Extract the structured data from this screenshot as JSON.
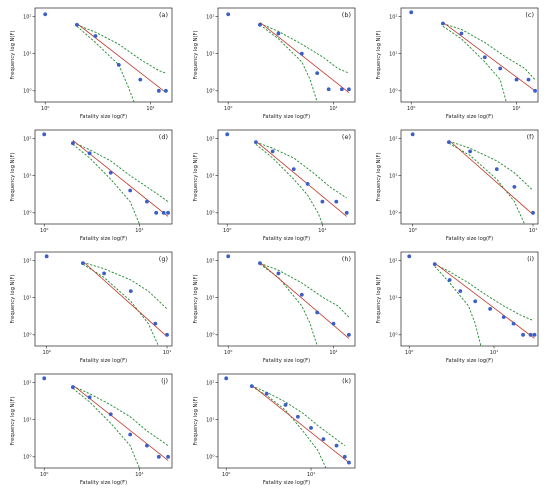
{
  "figure": {
    "xlabel": "Fatality size log(F)",
    "ylabel": "Frequency log N(F)"
  },
  "chart_data": [
    {
      "panel": "(a)",
      "type": "scatter",
      "xscale": "log",
      "yscale": "log",
      "xlabel": "Fatality size log(F)",
      "ylabel": "Frequency log N(F)",
      "xticks": [
        {
          "v": 1,
          "t": "10⁰"
        },
        {
          "v": 10,
          "t": "10¹"
        }
      ],
      "yticks": [
        {
          "v": 1,
          "t": "10⁰"
        },
        {
          "v": 10,
          "t": "10¹"
        },
        {
          "v": 100,
          "t": "10²"
        }
      ],
      "xlim": [
        0.8,
        16
      ],
      "ylim": [
        0.5,
        170
      ],
      "points": [
        [
          1,
          115
        ],
        [
          2,
          60
        ],
        [
          3,
          30
        ],
        [
          5,
          5
        ],
        [
          8,
          2
        ],
        [
          12,
          1
        ],
        [
          14,
          1
        ]
      ],
      "fit": [
        [
          2,
          65
        ],
        [
          14,
          0.9
        ]
      ],
      "ci_upper": [
        [
          2,
          60
        ],
        [
          3,
          38
        ],
        [
          5,
          18
        ],
        [
          8,
          7
        ],
        [
          12,
          3.5
        ],
        [
          14,
          3
        ]
      ],
      "ci_lower": [
        [
          2,
          55
        ],
        [
          3,
          20
        ],
        [
          5,
          5
        ],
        [
          6,
          1.5
        ],
        [
          7,
          0.5
        ]
      ]
    },
    {
      "panel": "(b)",
      "type": "scatter",
      "xscale": "log",
      "yscale": "log",
      "xlabel": "Fatality size log(F)",
      "ylabel": "Frequency log N(F)",
      "xticks": [
        {
          "v": 1,
          "t": "10⁰"
        },
        {
          "v": 10,
          "t": "10¹"
        }
      ],
      "yticks": [
        {
          "v": 1,
          "t": "10⁰"
        },
        {
          "v": 10,
          "t": "10¹"
        },
        {
          "v": 100,
          "t": "10²"
        }
      ],
      "xlim": [
        0.8,
        16
      ],
      "ylim": [
        0.5,
        170
      ],
      "points": [
        [
          1,
          115
        ],
        [
          2,
          60
        ],
        [
          3,
          35
        ],
        [
          5,
          10
        ],
        [
          7,
          3
        ],
        [
          9,
          1.1
        ],
        [
          12,
          1.1
        ],
        [
          14,
          1.1
        ]
      ],
      "fit": [
        [
          2,
          70
        ],
        [
          14,
          0.9
        ]
      ],
      "ci_upper": [
        [
          2,
          65
        ],
        [
          3,
          40
        ],
        [
          5,
          18
        ],
        [
          8,
          8
        ],
        [
          11,
          4
        ],
        [
          14,
          3
        ]
      ],
      "ci_lower": [
        [
          2,
          60
        ],
        [
          3,
          25
        ],
        [
          5,
          6
        ],
        [
          6,
          2
        ],
        [
          7,
          0.5
        ]
      ]
    },
    {
      "panel": "(c)",
      "type": "scatter",
      "xscale": "log",
      "yscale": "log",
      "xlabel": "Fatality size log(F)",
      "ylabel": "Frequency log N(F)",
      "xticks": [
        {
          "v": 1,
          "t": "10⁰"
        },
        {
          "v": 10,
          "t": "10¹"
        }
      ],
      "yticks": [
        {
          "v": 1,
          "t": "10⁰"
        },
        {
          "v": 10,
          "t": "10¹"
        },
        {
          "v": 100,
          "t": "10²"
        }
      ],
      "xlim": [
        0.8,
        16
      ],
      "ylim": [
        0.5,
        170
      ],
      "points": [
        [
          1,
          130
        ],
        [
          2,
          65
        ],
        [
          3,
          35
        ],
        [
          5,
          8
        ],
        [
          7,
          4
        ],
        [
          10,
          2
        ],
        [
          13,
          2
        ],
        [
          15,
          1
        ]
      ],
      "fit": [
        [
          2,
          70
        ],
        [
          15,
          1
        ]
      ],
      "ci_upper": [
        [
          2,
          65
        ],
        [
          3,
          45
        ],
        [
          5,
          20
        ],
        [
          8,
          8
        ],
        [
          12,
          4
        ],
        [
          15,
          2
        ]
      ],
      "ci_lower": [
        [
          2,
          55
        ],
        [
          3,
          25
        ],
        [
          5,
          6
        ],
        [
          7,
          2
        ],
        [
          8,
          0.5
        ]
      ]
    },
    {
      "panel": "(d)",
      "type": "scatter",
      "xscale": "log",
      "yscale": "log",
      "xlabel": "Fatality size log(F)",
      "ylabel": "Frequency log N(F)",
      "xticks": [
        {
          "v": 1,
          "t": "10⁰"
        },
        {
          "v": 10,
          "t": "10¹"
        }
      ],
      "yticks": [
        {
          "v": 1,
          "t": "10⁰"
        },
        {
          "v": 10,
          "t": "10¹"
        },
        {
          "v": 100,
          "t": "10²"
        }
      ],
      "xlim": [
        0.8,
        22
      ],
      "ylim": [
        0.5,
        170
      ],
      "points": [
        [
          1,
          130
        ],
        [
          2,
          75
        ],
        [
          3,
          40
        ],
        [
          5,
          12
        ],
        [
          8,
          4
        ],
        [
          12,
          2
        ],
        [
          15,
          1
        ],
        [
          18,
          1
        ],
        [
          20,
          1
        ]
      ],
      "fit": [
        [
          2,
          90
        ],
        [
          20,
          0.8
        ]
      ],
      "ci_upper": [
        [
          2,
          80
        ],
        [
          3,
          50
        ],
        [
          5,
          25
        ],
        [
          8,
          10
        ],
        [
          12,
          5
        ],
        [
          16,
          3
        ],
        [
          20,
          2
        ]
      ],
      "ci_lower": [
        [
          2,
          70
        ],
        [
          3,
          30
        ],
        [
          5,
          8
        ],
        [
          8,
          2
        ],
        [
          10,
          0.5
        ]
      ]
    },
    {
      "panel": "(e)",
      "type": "scatter",
      "xscale": "log",
      "yscale": "log",
      "xlabel": "Fatality size log(F)",
      "ylabel": "Frequency log N(F)",
      "xticks": [
        {
          "v": 1,
          "t": "10⁰"
        },
        {
          "v": 10,
          "t": "10¹"
        }
      ],
      "yticks": [
        {
          "v": 1,
          "t": "10⁰"
        },
        {
          "v": 10,
          "t": "10¹"
        },
        {
          "v": 100,
          "t": "10²"
        }
      ],
      "xlim": [
        0.8,
        22
      ],
      "ylim": [
        0.5,
        170
      ],
      "points": [
        [
          1,
          130
        ],
        [
          2,
          80
        ],
        [
          3,
          45
        ],
        [
          5,
          15
        ],
        [
          7,
          6
        ],
        [
          10,
          2
        ],
        [
          14,
          2
        ],
        [
          18,
          1
        ]
      ],
      "fit": [
        [
          2,
          85
        ],
        [
          18,
          0.8
        ]
      ],
      "ci_upper": [
        [
          2,
          80
        ],
        [
          3,
          55
        ],
        [
          5,
          30
        ],
        [
          8,
          12
        ],
        [
          12,
          5
        ],
        [
          18,
          2.5
        ]
      ],
      "ci_lower": [
        [
          2,
          70
        ],
        [
          3,
          30
        ],
        [
          5,
          8
        ],
        [
          7,
          3
        ],
        [
          9,
          1
        ],
        [
          10,
          0.5
        ]
      ]
    },
    {
      "panel": "(f)",
      "type": "scatter",
      "xscale": "log",
      "yscale": "log",
      "xlabel": "Fatality size log(F)",
      "ylabel": "Frequency log N(F)",
      "xticks": [
        {
          "v": 1,
          "t": "10⁰"
        },
        {
          "v": 10,
          "t": "10¹"
        }
      ],
      "yticks": [
        {
          "v": 1,
          "t": "10⁰"
        },
        {
          "v": 10,
          "t": "10¹"
        },
        {
          "v": 100,
          "t": "10²"
        }
      ],
      "xlim": [
        0.8,
        11
      ],
      "ylim": [
        0.5,
        170
      ],
      "points": [
        [
          1,
          130
        ],
        [
          2,
          80
        ],
        [
          3,
          45
        ],
        [
          5,
          15
        ],
        [
          7,
          5
        ],
        [
          10,
          1
        ]
      ],
      "fit": [
        [
          2,
          90
        ],
        [
          10,
          0.9
        ]
      ],
      "ci_upper": [
        [
          2,
          85
        ],
        [
          3,
          55
        ],
        [
          5,
          25
        ],
        [
          7,
          12
        ],
        [
          10,
          4
        ]
      ],
      "ci_lower": [
        [
          2,
          75
        ],
        [
          3,
          35
        ],
        [
          5,
          8
        ],
        [
          7,
          2
        ],
        [
          8.5,
          0.5
        ]
      ]
    },
    {
      "panel": "(g)",
      "type": "scatter",
      "xscale": "log",
      "yscale": "log",
      "xlabel": "Fatality size log(F)",
      "ylabel": "Frequency log N(F)",
      "xticks": [
        {
          "v": 1,
          "t": "10⁰"
        },
        {
          "v": 10,
          "t": "10¹"
        }
      ],
      "yticks": [
        {
          "v": 1,
          "t": "10⁰"
        },
        {
          "v": 10,
          "t": "10¹"
        },
        {
          "v": 100,
          "t": "10²"
        }
      ],
      "xlim": [
        0.8,
        11
      ],
      "ylim": [
        0.5,
        170
      ],
      "points": [
        [
          1,
          130
        ],
        [
          2,
          85
        ],
        [
          3,
          45
        ],
        [
          5,
          15
        ],
        [
          8,
          2
        ],
        [
          10,
          1
        ]
      ],
      "fit": [
        [
          2,
          95
        ],
        [
          10,
          0.9
        ]
      ],
      "ci_upper": [
        [
          2,
          90
        ],
        [
          3,
          60
        ],
        [
          5,
          30
        ],
        [
          7,
          15
        ],
        [
          10,
          5
        ]
      ],
      "ci_lower": [
        [
          2,
          80
        ],
        [
          3,
          35
        ],
        [
          5,
          8
        ],
        [
          7,
          2
        ],
        [
          8.5,
          0.5
        ]
      ]
    },
    {
      "panel": "(h)",
      "type": "scatter",
      "xscale": "log",
      "yscale": "log",
      "xlabel": "Fatality size log(F)",
      "ylabel": "Frequency log N(F)",
      "xticks": [
        {
          "v": 1,
          "t": "10⁰"
        },
        {
          "v": 10,
          "t": "10¹"
        }
      ],
      "yticks": [
        {
          "v": 1,
          "t": "10⁰"
        },
        {
          "v": 10,
          "t": "10¹"
        },
        {
          "v": 100,
          "t": "10²"
        }
      ],
      "xlim": [
        0.8,
        16
      ],
      "ylim": [
        0.5,
        170
      ],
      "points": [
        [
          1,
          130
        ],
        [
          2,
          85
        ],
        [
          3,
          45
        ],
        [
          5,
          12
        ],
        [
          7,
          4
        ],
        [
          10,
          2
        ],
        [
          14,
          1
        ]
      ],
      "fit": [
        [
          2,
          90
        ],
        [
          14,
          0.8
        ]
      ],
      "ci_upper": [
        [
          2,
          85
        ],
        [
          3,
          55
        ],
        [
          5,
          25
        ],
        [
          8,
          10
        ],
        [
          11,
          6
        ],
        [
          14,
          3
        ]
      ],
      "ci_lower": [
        [
          2,
          80
        ],
        [
          3,
          35
        ],
        [
          5,
          6
        ],
        [
          6,
          2
        ],
        [
          7,
          0.5
        ]
      ]
    },
    {
      "panel": "(i)",
      "type": "scatter",
      "xscale": "log",
      "yscale": "log",
      "xlabel": "Fatality size log(F)",
      "ylabel": "Frequency log N(F)",
      "xticks": [
        {
          "v": 1,
          "t": "10⁰"
        },
        {
          "v": 10,
          "t": "10¹"
        }
      ],
      "yticks": [
        {
          "v": 1,
          "t": "10⁰"
        },
        {
          "v": 10,
          "t": "10¹"
        },
        {
          "v": 100,
          "t": "10²"
        }
      ],
      "xlim": [
        0.8,
        33
      ],
      "ylim": [
        0.5,
        170
      ],
      "points": [
        [
          1,
          130
        ],
        [
          2,
          80
        ],
        [
          3,
          30
        ],
        [
          4,
          15
        ],
        [
          6,
          8
        ],
        [
          9,
          5
        ],
        [
          13,
          3
        ],
        [
          17,
          2
        ],
        [
          22,
          1
        ],
        [
          27,
          1
        ],
        [
          30,
          1
        ]
      ],
      "fit": [
        [
          2,
          85
        ],
        [
          30,
          0.8
        ]
      ],
      "ci_upper": [
        [
          2,
          80
        ],
        [
          3,
          50
        ],
        [
          5,
          25
        ],
        [
          8,
          12
        ],
        [
          13,
          6
        ],
        [
          20,
          3.5
        ],
        [
          28,
          2.5
        ]
      ],
      "ci_lower": [
        [
          2,
          70
        ],
        [
          3,
          25
        ],
        [
          5,
          6
        ],
        [
          6,
          2
        ],
        [
          7,
          0.5
        ]
      ]
    },
    {
      "panel": "(j)",
      "type": "scatter",
      "xscale": "log",
      "yscale": "log",
      "xlabel": "Fatality size log(F)",
      "ylabel": "Frequency log N(F)",
      "xticks": [
        {
          "v": 1,
          "t": "10⁰"
        },
        {
          "v": 10,
          "t": "10¹"
        }
      ],
      "yticks": [
        {
          "v": 1,
          "t": "10⁰"
        },
        {
          "v": 10,
          "t": "10¹"
        },
        {
          "v": 100,
          "t": "10²"
        }
      ],
      "xlim": [
        0.8,
        22
      ],
      "ylim": [
        0.5,
        170
      ],
      "points": [
        [
          1,
          130
        ],
        [
          2,
          75
        ],
        [
          3,
          40
        ],
        [
          5,
          14
        ],
        [
          8,
          4
        ],
        [
          12,
          2
        ],
        [
          16,
          1
        ],
        [
          20,
          1
        ]
      ],
      "fit": [
        [
          2,
          85
        ],
        [
          20,
          0.8
        ]
      ],
      "ci_upper": [
        [
          2,
          80
        ],
        [
          3,
          50
        ],
        [
          5,
          25
        ],
        [
          8,
          12
        ],
        [
          12,
          5
        ],
        [
          16,
          3
        ],
        [
          20,
          2
        ]
      ],
      "ci_lower": [
        [
          2,
          70
        ],
        [
          3,
          30
        ],
        [
          5,
          8
        ],
        [
          8,
          2
        ],
        [
          10,
          0.5
        ]
      ]
    },
    {
      "panel": "(k)",
      "type": "scatter",
      "xscale": "log",
      "yscale": "log",
      "xlabel": "Fatality size log(F)",
      "ylabel": "Frequency log N(F)",
      "xticks": [
        {
          "v": 1,
          "t": "10⁰"
        },
        {
          "v": 10,
          "t": "10¹"
        }
      ],
      "yticks": [
        {
          "v": 1,
          "t": "10⁰"
        },
        {
          "v": 10,
          "t": "10¹"
        },
        {
          "v": 100,
          "t": "10²"
        }
      ],
      "xlim": [
        0.8,
        33
      ],
      "ylim": [
        0.5,
        170
      ],
      "points": [
        [
          1,
          130
        ],
        [
          2,
          80
        ],
        [
          3,
          50
        ],
        [
          5,
          25
        ],
        [
          7,
          12
        ],
        [
          10,
          6
        ],
        [
          14,
          3
        ],
        [
          20,
          2
        ],
        [
          25,
          1
        ],
        [
          28,
          0.7
        ]
      ],
      "fit": [
        [
          2,
          85
        ],
        [
          28,
          0.7
        ]
      ],
      "ci_upper": [
        [
          2,
          82
        ],
        [
          3,
          55
        ],
        [
          5,
          30
        ],
        [
          8,
          15
        ],
        [
          12,
          7
        ],
        [
          18,
          3.5
        ],
        [
          25,
          2
        ]
      ],
      "ci_lower": [
        [
          2,
          78
        ],
        [
          3,
          45
        ],
        [
          5,
          18
        ],
        [
          8,
          5
        ],
        [
          12,
          1.5
        ],
        [
          15,
          0.5
        ]
      ]
    }
  ]
}
